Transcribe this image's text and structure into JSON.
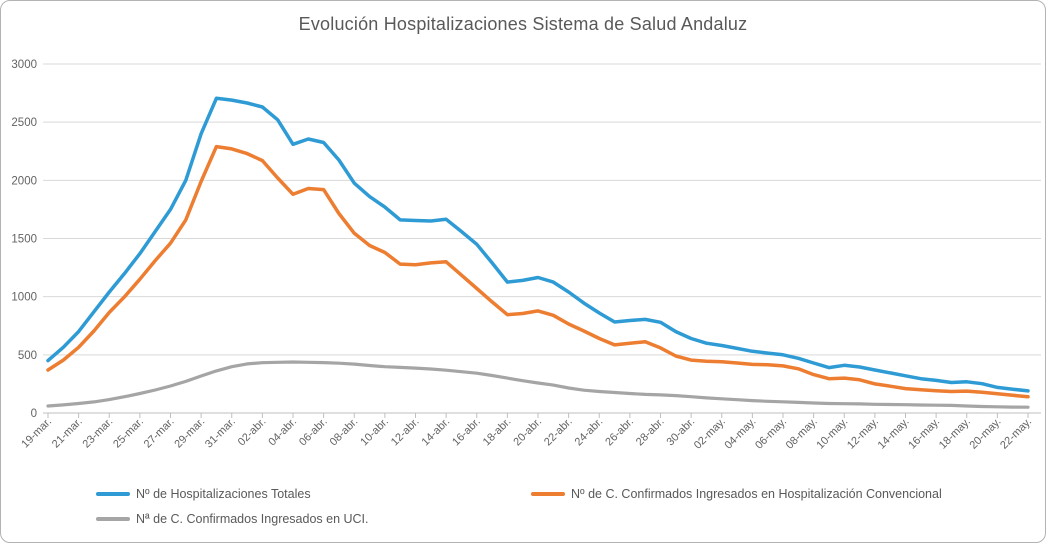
{
  "title": "Evolución Hospitalizaciones Sistema de Salud Andaluz",
  "colors": {
    "series_blue": "#2E9BD5",
    "series_orange": "#ED7D31",
    "series_gray": "#A5A5A5",
    "gridline": "#D9D9D9",
    "axis_line": "#BFBFBF",
    "title_text": "#595959",
    "tick_text": "#636363",
    "legend_text": "#595959",
    "frame_border": "#B3B3B3"
  },
  "chart_data": {
    "type": "line",
    "title": "Evolución Hospitalizaciones Sistema de Salud Andaluz",
    "xlabel": "",
    "ylabel": "",
    "ylim": [
      0,
      3000
    ],
    "ytick_step": 500,
    "y_tick_labels": [
      "0",
      "500",
      "1000",
      "1500",
      "2000",
      "2500",
      "3000"
    ],
    "grid": true,
    "legend_position": "bottom",
    "x_tick_every": 2,
    "categories": [
      "19-mar.",
      "20-mar.",
      "21-mar.",
      "22-mar.",
      "23-mar.",
      "24-mar.",
      "25-mar.",
      "26-mar.",
      "27-mar.",
      "28-mar.",
      "29-mar.",
      "30-mar.",
      "31-mar.",
      "01-abr.",
      "02-abr.",
      "03-abr.",
      "04-abr.",
      "05-abr.",
      "06-abr.",
      "07-abr.",
      "08-abr.",
      "09-abr.",
      "10-abr.",
      "11-abr.",
      "12-abr.",
      "13-abr.",
      "14-abr.",
      "15-abr.",
      "16-abr.",
      "17-abr.",
      "18-abr.",
      "19-abr.",
      "20-abr.",
      "21-abr.",
      "22-abr.",
      "23-abr.",
      "24-abr.",
      "25-abr.",
      "26-abr.",
      "27-abr.",
      "28-abr.",
      "29-abr.",
      "30-abr.",
      "01-may.",
      "02-may.",
      "03-may.",
      "04-may.",
      "05-may.",
      "06-may.",
      "07-may.",
      "08-may.",
      "09-may.",
      "10-may.",
      "11-may.",
      "12-may.",
      "13-may.",
      "14-may.",
      "15-may.",
      "16-may.",
      "17-may.",
      "18-may.",
      "19-may.",
      "20-may.",
      "21-may.",
      "22-may."
    ],
    "series": [
      {
        "name": "Nº de Hospitalizaciones Totales",
        "color": "#2E9BD5",
        "values": [
          450,
          565,
          700,
          870,
          1040,
          1200,
          1370,
          1560,
          1750,
          2000,
          2400,
          2705,
          2690,
          2665,
          2630,
          2520,
          2310,
          2355,
          2325,
          2175,
          1975,
          1860,
          1770,
          1660,
          1655,
          1650,
          1665,
          1560,
          1450,
          1290,
          1125,
          1140,
          1165,
          1125,
          1040,
          945,
          860,
          782,
          795,
          805,
          780,
          700,
          640,
          600,
          580,
          555,
          530,
          515,
          500,
          470,
          430,
          390,
          410,
          395,
          370,
          345,
          320,
          295,
          280,
          262,
          268,
          252,
          220,
          205,
          190
        ]
      },
      {
        "name": "Nº de C. Confirmados Ingresados en Hospitalización Convencional",
        "color": "#ED7D31",
        "values": [
          370,
          455,
          565,
          705,
          865,
          1000,
          1150,
          1310,
          1460,
          1660,
          1990,
          2290,
          2270,
          2230,
          2170,
          2020,
          1880,
          1930,
          1920,
          1715,
          1545,
          1440,
          1380,
          1280,
          1275,
          1290,
          1300,
          1185,
          1070,
          955,
          845,
          855,
          878,
          840,
          765,
          705,
          640,
          585,
          600,
          612,
          560,
          490,
          455,
          445,
          440,
          430,
          418,
          415,
          405,
          380,
          330,
          295,
          300,
          285,
          250,
          230,
          210,
          200,
          192,
          185,
          188,
          178,
          165,
          152,
          140
        ]
      },
      {
        "name": "Nª de C. Confirmados Ingresados en UCI.",
        "color": "#A5A5A5",
        "values": [
          60,
          70,
          82,
          95,
          115,
          140,
          168,
          198,
          232,
          272,
          318,
          362,
          398,
          422,
          432,
          436,
          438,
          436,
          433,
          428,
          420,
          408,
          398,
          392,
          386,
          378,
          368,
          355,
          342,
          322,
          300,
          278,
          258,
          240,
          215,
          196,
          185,
          176,
          168,
          160,
          156,
          150,
          140,
          130,
          122,
          114,
          107,
          101,
          96,
          91,
          86,
          82,
          80,
          78,
          75,
          73,
          71,
          69,
          67,
          65,
          60,
          56,
          53,
          51,
          50
        ]
      }
    ]
  }
}
